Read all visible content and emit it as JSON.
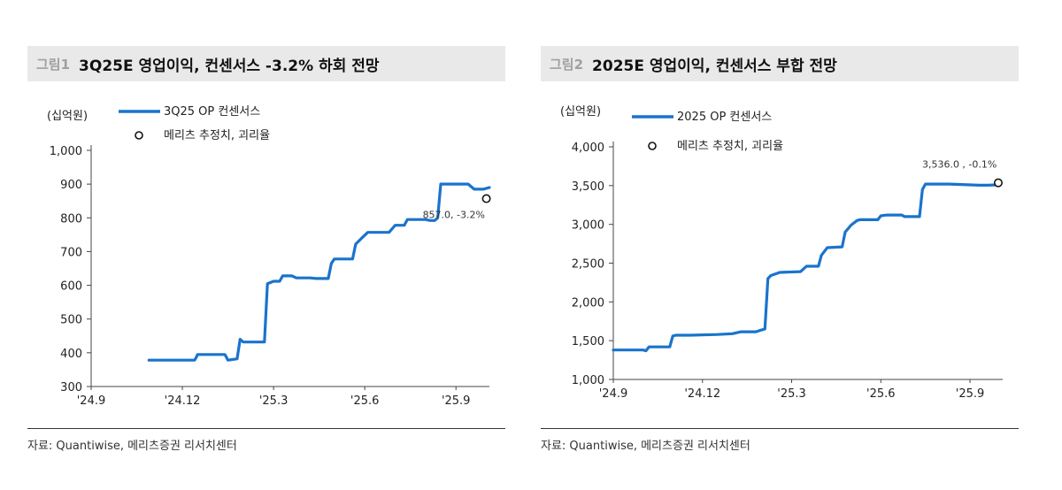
{
  "colors": {
    "line": "#1a73cc",
    "title_bg": "#e9e9e9",
    "axis": "#444444"
  },
  "panels": [
    {
      "figure_label": "그림1",
      "title": "3Q25E 영업이익, 컨센서스 -3.2% 하회 전망",
      "source": "자료: Quantiwise, 메리츠증권 리서치센터"
    },
    {
      "figure_label": "그림2",
      "title": "2025E 영업이익, 컨센서스 부합 전망",
      "source": "자료: Quantiwise, 메리츠증권 리서치센터"
    }
  ],
  "chart_data": [
    {
      "type": "line",
      "unit_label": "(십억원)",
      "legend": [
        "3Q25 OP 컨센서스",
        "메리츠 추정치, 괴리율"
      ],
      "x_ticks": [
        "'24.9",
        "'24.12",
        "'25.3",
        "'25.6",
        "'25.9"
      ],
      "x_range": [
        0,
        13.1
      ],
      "ylim": [
        300,
        1000
      ],
      "y_ticks": [
        300,
        400,
        500,
        600,
        700,
        800,
        900,
        1000
      ],
      "y_tick_labels": [
        "300",
        "400",
        "500",
        "600",
        "700",
        "800",
        "900",
        "1,000"
      ],
      "series": [
        {
          "name": "3Q25 OP 컨센서스",
          "style": "step",
          "points": [
            [
              1.9,
              378
            ],
            [
              3.4,
              378
            ],
            [
              3.45,
              385
            ],
            [
              3.5,
              395
            ],
            [
              4.4,
              395
            ],
            [
              4.5,
              378
            ],
            [
              4.8,
              382
            ],
            [
              4.9,
              440
            ],
            [
              5.0,
              432
            ],
            [
              5.5,
              432
            ],
            [
              5.7,
              432
            ],
            [
              5.8,
              605
            ],
            [
              6.0,
              612
            ],
            [
              6.2,
              612
            ],
            [
              6.3,
              628
            ],
            [
              6.6,
              628
            ],
            [
              6.75,
              622
            ],
            [
              7.2,
              622
            ],
            [
              7.4,
              620
            ],
            [
              7.8,
              620
            ],
            [
              7.9,
              665
            ],
            [
              8.0,
              678
            ],
            [
              8.6,
              678
            ],
            [
              8.7,
              722
            ],
            [
              8.9,
              740
            ],
            [
              9.1,
              757
            ],
            [
              9.8,
              757
            ],
            [
              10.0,
              778
            ],
            [
              10.3,
              778
            ],
            [
              10.4,
              795
            ],
            [
              11.0,
              795
            ],
            [
              11.15,
              792
            ],
            [
              11.3,
              792
            ],
            [
              11.4,
              800
            ],
            [
              11.5,
              900
            ],
            [
              12.4,
              900
            ],
            [
              12.6,
              885
            ],
            [
              12.9,
              885
            ],
            [
              13.1,
              890
            ]
          ]
        }
      ],
      "estimate": {
        "x": 13.0,
        "y": 857.0,
        "label": "857.0, -3.2%"
      }
    },
    {
      "type": "line",
      "unit_label": "(십억원)",
      "legend": [
        "2025 OP 컨센서스",
        "메리츠 추정치, 괴리율"
      ],
      "x_ticks": [
        "'24.9",
        "'24.12",
        "'25.3",
        "'25.6",
        "'25.9"
      ],
      "x_range": [
        0,
        13.1
      ],
      "ylim": [
        1000,
        4000
      ],
      "y_ticks": [
        1000,
        1500,
        2000,
        2500,
        3000,
        3500,
        4000
      ],
      "y_tick_labels": [
        "1,000",
        "1,500",
        "2,000",
        "2,500",
        "3,000",
        "3,500",
        "4,000"
      ],
      "series": [
        {
          "name": "2025 OP 컨센서스",
          "style": "step",
          "points": [
            [
              0,
              1380
            ],
            [
              1.0,
              1380
            ],
            [
              1.1,
              1370
            ],
            [
              1.2,
              1420
            ],
            [
              1.9,
              1420
            ],
            [
              2.0,
              1560
            ],
            [
              2.1,
              1570
            ],
            [
              2.6,
              1570
            ],
            [
              3.5,
              1580
            ],
            [
              4.0,
              1590
            ],
            [
              4.3,
              1615
            ],
            [
              4.8,
              1615
            ],
            [
              5.0,
              1640
            ],
            [
              5.1,
              1650
            ],
            [
              5.2,
              2300
            ],
            [
              5.3,
              2340
            ],
            [
              5.6,
              2380
            ],
            [
              6.3,
              2390
            ],
            [
              6.5,
              2460
            ],
            [
              6.9,
              2460
            ],
            [
              7.0,
              2600
            ],
            [
              7.2,
              2700
            ],
            [
              7.7,
              2710
            ],
            [
              7.8,
              2900
            ],
            [
              8.0,
              2990
            ],
            [
              8.2,
              3050
            ],
            [
              8.3,
              3060
            ],
            [
              8.9,
              3060
            ],
            [
              9.0,
              3110
            ],
            [
              9.2,
              3120
            ],
            [
              9.7,
              3120
            ],
            [
              9.8,
              3100
            ],
            [
              10.3,
              3100
            ],
            [
              10.4,
              3450
            ],
            [
              10.5,
              3520
            ],
            [
              11.0,
              3520
            ],
            [
              11.3,
              3520
            ],
            [
              12.0,
              3510
            ],
            [
              12.3,
              3505
            ],
            [
              12.6,
              3505
            ],
            [
              12.9,
              3510
            ]
          ]
        }
      ],
      "estimate": {
        "x": 12.95,
        "y": 3536.0,
        "label": "3,536.0 , -0.1%"
      }
    }
  ]
}
